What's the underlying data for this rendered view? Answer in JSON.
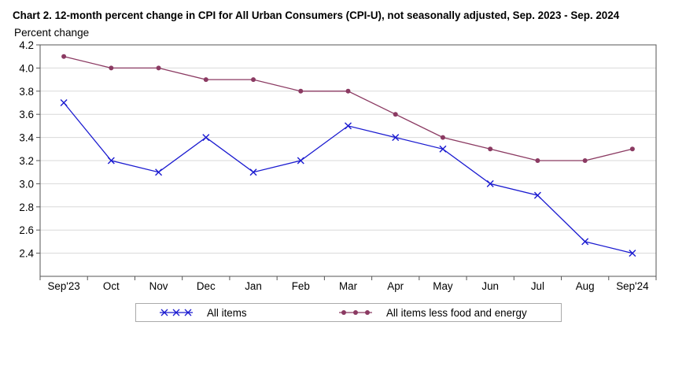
{
  "title": "Chart 2. 12-month percent change in CPI for All Urban Consumers (CPI-U), not seasonally adjusted, Sep. 2023 - Sep. 2024",
  "ylabel": "Percent change",
  "chart_data": {
    "type": "line",
    "title": "Chart 2. 12-month percent change in CPI for All Urban Consumers (CPI-U), not seasonally adjusted, Sep. 2023 - Sep. 2024",
    "ylabel": "Percent change",
    "xlabel": "",
    "categories": [
      "Sep'23",
      "Oct",
      "Nov",
      "Dec",
      "Jan",
      "Feb",
      "Mar",
      "Apr",
      "May",
      "Jun",
      "Jul",
      "Aug",
      "Sep'24"
    ],
    "ylim": [
      2.2,
      4.2
    ],
    "yticks": [
      "2.4",
      "2.6",
      "2.8",
      "3.0",
      "3.2",
      "3.4",
      "3.6",
      "3.8",
      "4.0",
      "4.2"
    ],
    "grid": true,
    "legend_position": "bottom",
    "series": [
      {
        "name": "All items",
        "color": "#1a1ad0",
        "marker": "x",
        "values": [
          3.7,
          3.2,
          3.1,
          3.4,
          3.1,
          3.2,
          3.5,
          3.4,
          3.3,
          3.0,
          2.9,
          2.5,
          2.4
        ]
      },
      {
        "name": "All items less food and energy",
        "color": "#8b3a62",
        "marker": "circle",
        "values": [
          4.1,
          4.0,
          4.0,
          3.9,
          3.9,
          3.8,
          3.8,
          3.6,
          3.4,
          3.3,
          3.2,
          3.2,
          3.3
        ]
      }
    ]
  }
}
